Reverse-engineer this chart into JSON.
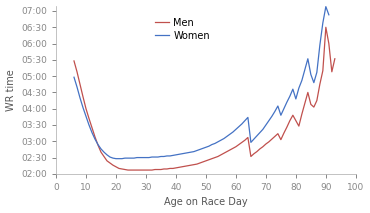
{
  "title": "",
  "xlabel": "Age on Race Day",
  "ylabel": "WR time",
  "xlim": [
    0,
    100
  ],
  "ylim_minutes": [
    120,
    430
  ],
  "yticks_minutes": [
    120,
    150,
    180,
    210,
    240,
    270,
    300,
    330,
    360,
    390,
    420
  ],
  "xticks": [
    0,
    10,
    20,
    30,
    40,
    50,
    60,
    70,
    80,
    90,
    100
  ],
  "men_color": "#C0504D",
  "women_color": "#4472C4",
  "bg_color": "#ffffff",
  "men_ages": [
    6,
    7,
    8,
    9,
    10,
    11,
    12,
    13,
    14,
    15,
    16,
    17,
    18,
    19,
    20,
    21,
    22,
    23,
    24,
    25,
    26,
    27,
    28,
    29,
    30,
    31,
    32,
    33,
    34,
    35,
    36,
    37,
    38,
    39,
    40,
    41,
    42,
    43,
    44,
    45,
    46,
    47,
    48,
    49,
    50,
    51,
    52,
    53,
    54,
    55,
    56,
    57,
    58,
    59,
    60,
    61,
    62,
    63,
    64,
    65,
    66,
    67,
    68,
    69,
    70,
    71,
    72,
    73,
    74,
    75,
    76,
    77,
    78,
    79,
    80,
    81,
    82,
    83,
    84,
    85,
    86,
    87,
    88,
    89,
    90,
    91,
    92,
    93
  ],
  "men_minutes": [
    328,
    308,
    285,
    262,
    240,
    222,
    205,
    188,
    173,
    160,
    152,
    144,
    140,
    136,
    133,
    130,
    129,
    128,
    127,
    127,
    127,
    127,
    127,
    127,
    127,
    127,
    127,
    128,
    128,
    128,
    129,
    129,
    130,
    130,
    131,
    132,
    133,
    134,
    135,
    136,
    137,
    138,
    140,
    142,
    144,
    146,
    148,
    150,
    152,
    155,
    158,
    161,
    164,
    167,
    170,
    174,
    178,
    182,
    187,
    152,
    157,
    161,
    166,
    170,
    175,
    179,
    184,
    189,
    194,
    183,
    195,
    206,
    218,
    228,
    218,
    208,
    230,
    250,
    270,
    248,
    243,
    255,
    285,
    310,
    390,
    360,
    308,
    332
  ],
  "women_ages": [
    6,
    7,
    8,
    9,
    10,
    11,
    12,
    13,
    14,
    15,
    16,
    17,
    18,
    19,
    20,
    21,
    22,
    23,
    24,
    25,
    26,
    27,
    28,
    29,
    30,
    31,
    32,
    33,
    34,
    35,
    36,
    37,
    38,
    39,
    40,
    41,
    42,
    43,
    44,
    45,
    46,
    47,
    48,
    49,
    50,
    51,
    52,
    53,
    54,
    55,
    56,
    57,
    58,
    59,
    60,
    61,
    62,
    63,
    64,
    65,
    66,
    67,
    68,
    69,
    70,
    71,
    72,
    73,
    74,
    75,
    76,
    77,
    78,
    79,
    80,
    81,
    82,
    83,
    84,
    85,
    86,
    87,
    88,
    89,
    90,
    91
  ],
  "women_minutes": [
    298,
    280,
    260,
    242,
    226,
    210,
    196,
    184,
    174,
    166,
    160,
    155,
    151,
    149,
    148,
    148,
    148,
    149,
    149,
    149,
    149,
    150,
    150,
    150,
    150,
    150,
    151,
    151,
    151,
    152,
    152,
    153,
    153,
    154,
    155,
    156,
    157,
    158,
    159,
    160,
    161,
    163,
    165,
    167,
    169,
    171,
    174,
    176,
    179,
    182,
    185,
    189,
    193,
    197,
    202,
    207,
    212,
    218,
    224,
    178,
    184,
    190,
    196,
    202,
    210,
    218,
    226,
    235,
    245,
    228,
    240,
    252,
    263,
    276,
    258,
    278,
    292,
    312,
    332,
    303,
    288,
    307,
    357,
    398,
    428,
    413
  ]
}
